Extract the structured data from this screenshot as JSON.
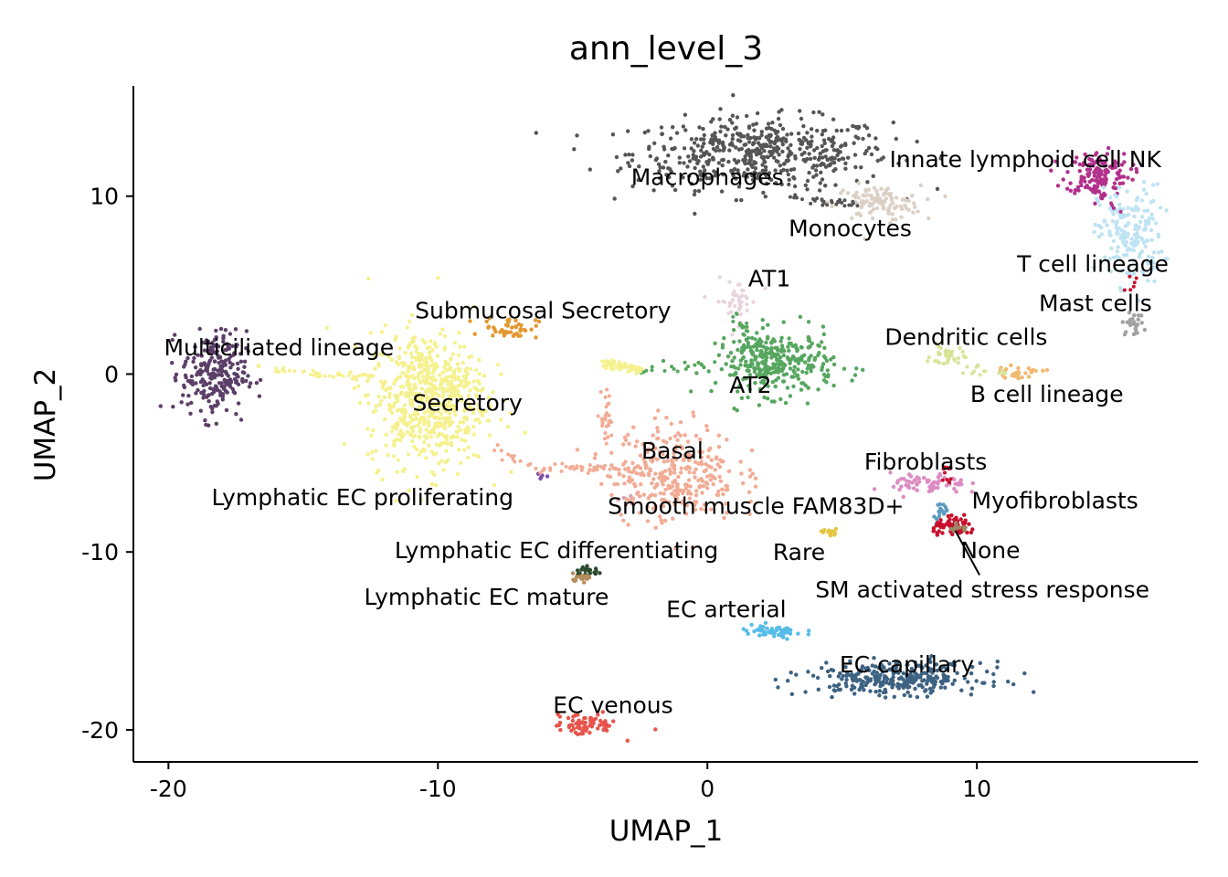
{
  "chart_data": {
    "type": "scatter",
    "title": "ann_level_3",
    "xlabel": "UMAP_1",
    "ylabel": "UMAP_2",
    "xlim": [
      -21.3,
      18.2
    ],
    "ylim": [
      -21.8,
      16.2
    ],
    "xticks": [
      -20,
      -10,
      0,
      10
    ],
    "xtick_labels": [
      "-20",
      "-10",
      "0",
      "10"
    ],
    "yticks": [
      -20,
      -10,
      0,
      10
    ],
    "ytick_labels": [
      "-20",
      "-10",
      "0",
      "10"
    ],
    "grid": false,
    "legend": "none",
    "clusters": [
      {
        "name": "Macrophages",
        "color": "#555555",
        "cx": 2.0,
        "cy": 12.4,
        "sx": 2.4,
        "sy": 1.0,
        "n": 520,
        "label_x": 0.0,
        "label_y": 11.0
      },
      {
        "name": "Monocytes",
        "color": "#dcd0c6",
        "cx": 6.3,
        "cy": 9.6,
        "sx": 0.8,
        "sy": 0.5,
        "n": 110,
        "label_x": 5.3,
        "label_y": 8.1
      },
      {
        "name": "Innate lymphoid cell NK",
        "color": "#b2318c",
        "cx": 14.5,
        "cy": 11.3,
        "sx": 0.6,
        "sy": 0.6,
        "n": 140,
        "label_x": 11.8,
        "label_y": 12.0
      },
      {
        "name": "T cell lineage",
        "color": "#bee3f3",
        "cx": 15.7,
        "cy": 7.8,
        "sx": 0.6,
        "sy": 1.4,
        "n": 180,
        "label_x": 14.3,
        "label_y": 6.1
      },
      {
        "name": "Mast cells",
        "color": "#a2a2a2",
        "cx": 15.8,
        "cy": 2.8,
        "sx": 0.2,
        "sy": 0.3,
        "n": 25,
        "label_x": 14.4,
        "label_y": 3.9
      },
      {
        "name": "AT1",
        "color": "#e8d4df",
        "cx": 1.1,
        "cy": 4.1,
        "sx": 0.4,
        "sy": 0.6,
        "n": 40,
        "label_x": 2.3,
        "label_y": 5.3
      },
      {
        "name": "AT2",
        "color": "#56a65f",
        "cx": 2.5,
        "cy": 0.6,
        "sx": 1.1,
        "sy": 0.9,
        "n": 330,
        "label_x": 1.6,
        "label_y": -0.7
      },
      {
        "name": "Dendritic cells",
        "color": "#d7e59b",
        "cx": 8.9,
        "cy": 1.0,
        "sx": 0.3,
        "sy": 0.3,
        "n": 35,
        "label_x": 9.6,
        "label_y": 2.0
      },
      {
        "name": "B cell lineage",
        "color": "#f1b96f",
        "cx": 11.5,
        "cy": 0.1,
        "sx": 0.5,
        "sy": 0.15,
        "n": 30,
        "label_x": 12.6,
        "label_y": -1.2
      },
      {
        "name": "Submucosal Secretory",
        "color": "#e3982f",
        "cx": -7.3,
        "cy": 2.6,
        "sx": 0.5,
        "sy": 0.3,
        "n": 45,
        "label_x": -6.1,
        "label_y": 3.5
      },
      {
        "name": "Multiciliated lineage",
        "color": "#5b3f68",
        "cx": -18.3,
        "cy": 0.0,
        "sx": 0.6,
        "sy": 1.2,
        "n": 240,
        "label_x": -15.9,
        "label_y": 1.4
      },
      {
        "name": "Secretory",
        "color": "#f5f18e",
        "cx": -10.4,
        "cy": -1.4,
        "sx": 1.1,
        "sy": 1.9,
        "n": 620,
        "label_x": -8.9,
        "label_y": -1.7
      },
      {
        "name": "Basal",
        "color": "#f2ab95",
        "cx": -1.3,
        "cy": -5.5,
        "sx": 1.2,
        "sy": 1.4,
        "n": 330,
        "label_x": -1.3,
        "label_y": -4.4
      },
      {
        "name": "Lymphatic EC proliferating",
        "color": "#7d4ea8",
        "cx": -6.1,
        "cy": -5.7,
        "sx": 0.1,
        "sy": 0.2,
        "n": 5,
        "label_x": -12.8,
        "label_y": -7.0
      },
      {
        "name": "Smooth muscle FAM83D+",
        "color": "#d8a7b0",
        "cx": -3.0,
        "cy": -7.2,
        "sx": 0.2,
        "sy": 0.2,
        "n": 4,
        "label_x": 1.8,
        "label_y": -7.5
      },
      {
        "name": "Lymphatic EC differentiating",
        "color": "#2c4a2e",
        "cx": -4.4,
        "cy": -11.1,
        "sx": 0.3,
        "sy": 0.15,
        "n": 20,
        "label_x": -5.6,
        "label_y": -10.0
      },
      {
        "name": "Lymphatic EC mature",
        "color": "#b48c5a",
        "cx": -4.7,
        "cy": -11.4,
        "sx": 0.2,
        "sy": 0.1,
        "n": 18,
        "label_x": -8.2,
        "label_y": -12.6
      },
      {
        "name": "Rare",
        "color": "#e5c542",
        "cx": 4.6,
        "cy": -8.9,
        "sx": 0.2,
        "sy": 0.1,
        "n": 12,
        "label_x": 3.4,
        "label_y": -10.1
      },
      {
        "name": "Fibroblasts",
        "color": "#dc8cc2",
        "cx": 8.2,
        "cy": -6.2,
        "sx": 0.7,
        "sy": 0.3,
        "n": 70,
        "label_x": 8.1,
        "label_y": -5.0
      },
      {
        "name": "Myofibroblasts",
        "color": "#5b9ac0",
        "cx": 8.7,
        "cy": -7.7,
        "sx": 0.15,
        "sy": 0.3,
        "n": 20,
        "label_x": 12.9,
        "label_y": -7.2
      },
      {
        "name": "None",
        "color": "#c8102e",
        "cx": 9.2,
        "cy": -8.6,
        "sx": 0.4,
        "sy": 0.25,
        "n": 70,
        "label_x": 10.5,
        "label_y": -10.0
      },
      {
        "name": "SM activated stress response",
        "color": "#9c8867",
        "cx": 9.3,
        "cy": -8.7,
        "sx": 0.2,
        "sy": 0.1,
        "n": 12,
        "label_x": 10.2,
        "label_y": -12.2
      },
      {
        "name": "EC arterial",
        "color": "#57bde8",
        "cx": 2.4,
        "cy": -14.5,
        "sx": 0.6,
        "sy": 0.2,
        "n": 55,
        "label_x": 0.7,
        "label_y": -13.3
      },
      {
        "name": "EC capillary",
        "color": "#3d6282",
        "cx": 7.0,
        "cy": -17.1,
        "sx": 1.6,
        "sy": 0.45,
        "n": 300,
        "label_x": 7.4,
        "label_y": -16.4
      },
      {
        "name": "EC venous",
        "color": "#e8534b",
        "cx": -4.5,
        "cy": -19.7,
        "sx": 0.6,
        "sy": 0.3,
        "n": 75,
        "label_x": -3.5,
        "label_y": -18.7
      }
    ],
    "bridges": [
      {
        "from": [
          -16.5,
          0.3
        ],
        "to": [
          -12.0,
          -0.3
        ],
        "color": "#f5f18e",
        "n": 40
      },
      {
        "from": [
          -11.0,
          0.4
        ],
        "to": [
          -8.5,
          0.2
        ],
        "color": "#f5f18e",
        "n": 20
      },
      {
        "from": [
          -3.0,
          0.0
        ],
        "to": [
          0.5,
          0.7
        ],
        "color": "#56a65f",
        "n": 14
      },
      {
        "from": [
          -3.8,
          0.6
        ],
        "to": [
          -2.5,
          0.2
        ],
        "color": "#f5f18e",
        "n": 70
      },
      {
        "from": [
          -3.8,
          -1.0
        ],
        "to": [
          -3.8,
          -3.8
        ],
        "color": "#f2ab95",
        "n": 25
      },
      {
        "from": [
          -6.3,
          -5.4
        ],
        "to": [
          -3.6,
          -5.2
        ],
        "color": "#f2ab95",
        "n": 35
      },
      {
        "from": [
          -8.2,
          -4.0
        ],
        "to": [
          -6.5,
          -5.4
        ],
        "color": "#f2ab95",
        "n": 12
      },
      {
        "from": [
          9.5,
          0.3
        ],
        "to": [
          11.2,
          0.1
        ],
        "color": "#d7e59b",
        "n": 14
      },
      {
        "from": [
          3.0,
          10.0
        ],
        "to": [
          5.6,
          9.5
        ],
        "color": "#555555",
        "n": 30
      },
      {
        "from": [
          14.2,
          10.5
        ],
        "to": [
          15.4,
          9.2
        ],
        "color": "#b2318c",
        "n": 25
      },
      {
        "from": [
          15.7,
          5.5
        ],
        "to": [
          15.8,
          4.7
        ],
        "color": "#c8102e",
        "n": 6
      },
      {
        "from": [
          1.0,
          3.4
        ],
        "to": [
          1.7,
          1.6
        ],
        "color": "#56a65f",
        "n": 20
      },
      {
        "from": [
          8.8,
          -5.0
        ],
        "to": [
          8.9,
          -6.0
        ],
        "color": "#c8102e",
        "n": 10
      }
    ],
    "annotation_lines": [
      {
        "from": [
          9.2,
          -8.8
        ],
        "to": [
          10.1,
          -11.3
        ]
      }
    ]
  }
}
